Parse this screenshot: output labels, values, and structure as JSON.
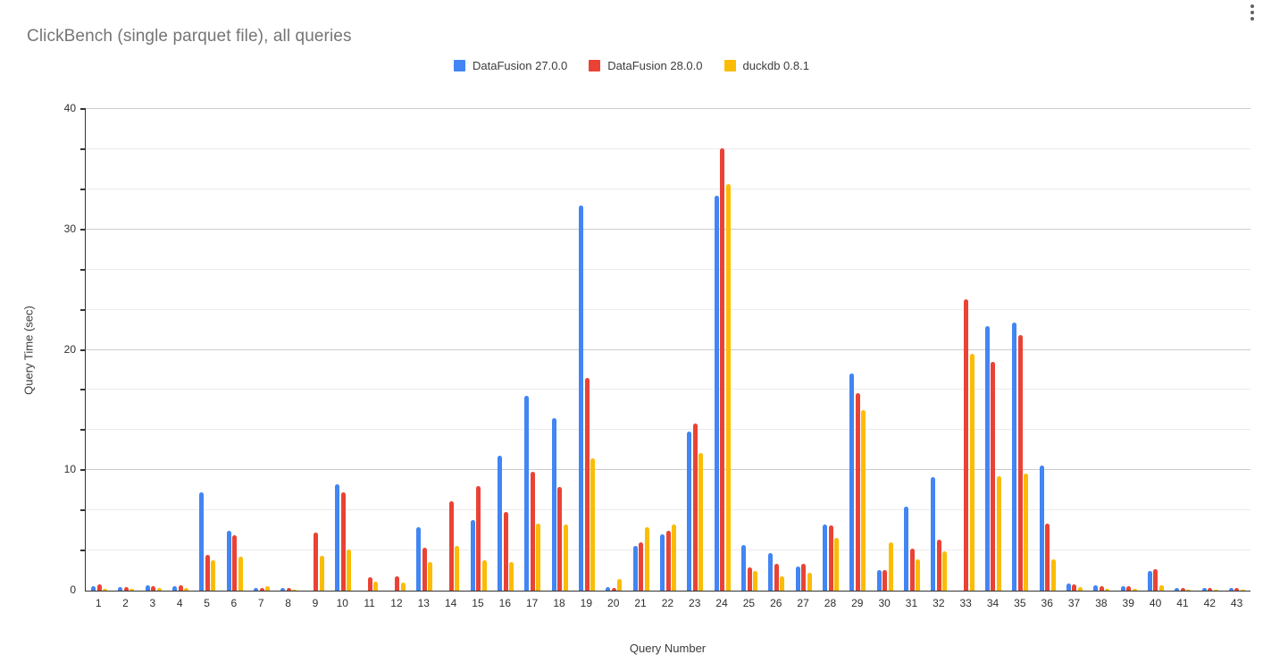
{
  "window": {
    "options_menu_icon": "kebab-menu-icon"
  },
  "chart_data": {
    "type": "bar",
    "title": "ClickBench (single parquet file), all queries",
    "xlabel": "Query Number",
    "ylabel": "Query Time (sec)",
    "ylim": [
      0,
      40
    ],
    "yticks": [
      0,
      10,
      20,
      30,
      40
    ],
    "grid": {
      "major_step": 10,
      "minor_step": 3.3333,
      "minor_lines_on": true
    },
    "legend_position": "top-center",
    "title_color": "#757575",
    "axis_color": "#333333",
    "categories": [
      "1",
      "2",
      "3",
      "4",
      "5",
      "6",
      "7",
      "8",
      "9",
      "10",
      "11",
      "12",
      "13",
      "14",
      "15",
      "16",
      "17",
      "18",
      "19",
      "20",
      "21",
      "22",
      "23",
      "24",
      "25",
      "26",
      "27",
      "28",
      "29",
      "30",
      "31",
      "32",
      "33",
      "34",
      "35",
      "36",
      "37",
      "38",
      "39",
      "40",
      "41",
      "42",
      "43"
    ],
    "series": [
      {
        "name": "DataFusion 27.0.0",
        "key": "datafusion-27",
        "color": "#4285F4",
        "values": [
          0.4,
          0.3,
          0.45,
          0.4,
          8.2,
          5.0,
          0.2,
          0.25,
          0,
          8.8,
          0,
          0,
          5.3,
          0,
          5.9,
          11.2,
          16.2,
          14.3,
          32.0,
          0.3,
          3.7,
          4.7,
          13.2,
          32.8,
          3.8,
          3.1,
          2.0,
          5.5,
          18.0,
          1.7,
          7.0,
          9.4,
          0,
          22.0,
          22.3,
          10.4,
          0.6,
          0.45,
          0.4,
          1.65,
          0.25,
          0.2,
          0.25
        ]
      },
      {
        "name": "DataFusion 28.0.0",
        "key": "datafusion-28",
        "color": "#EA4335",
        "values": [
          0.5,
          0.3,
          0.4,
          0.45,
          3.0,
          4.6,
          0.2,
          0.25,
          4.8,
          8.2,
          1.1,
          1.2,
          3.6,
          7.4,
          8.7,
          6.5,
          9.9,
          8.6,
          17.7,
          0.25,
          4.0,
          5.0,
          13.9,
          36.7,
          1.9,
          2.2,
          2.2,
          5.4,
          16.4,
          1.7,
          3.5,
          4.2,
          24.2,
          19.0,
          21.2,
          5.6,
          0.5,
          0.4,
          0.35,
          1.8,
          0.2,
          0.25,
          0.25
        ]
      },
      {
        "name": "duckdb 0.8.1",
        "key": "duckdb-081",
        "color": "#FBBC04",
        "values": [
          0.15,
          0.15,
          0.25,
          0.25,
          2.5,
          2.8,
          0.4,
          0.1,
          2.9,
          3.4,
          0.75,
          0.7,
          2.4,
          3.7,
          2.5,
          2.4,
          5.6,
          5.5,
          11.0,
          1.0,
          5.3,
          5.5,
          11.4,
          33.8,
          1.6,
          1.2,
          1.5,
          4.4,
          15.0,
          4.0,
          2.6,
          3.3,
          19.7,
          9.5,
          9.7,
          2.6,
          0.3,
          0.12,
          0.12,
          0.45,
          0.05,
          0.05,
          0.07
        ]
      }
    ]
  }
}
